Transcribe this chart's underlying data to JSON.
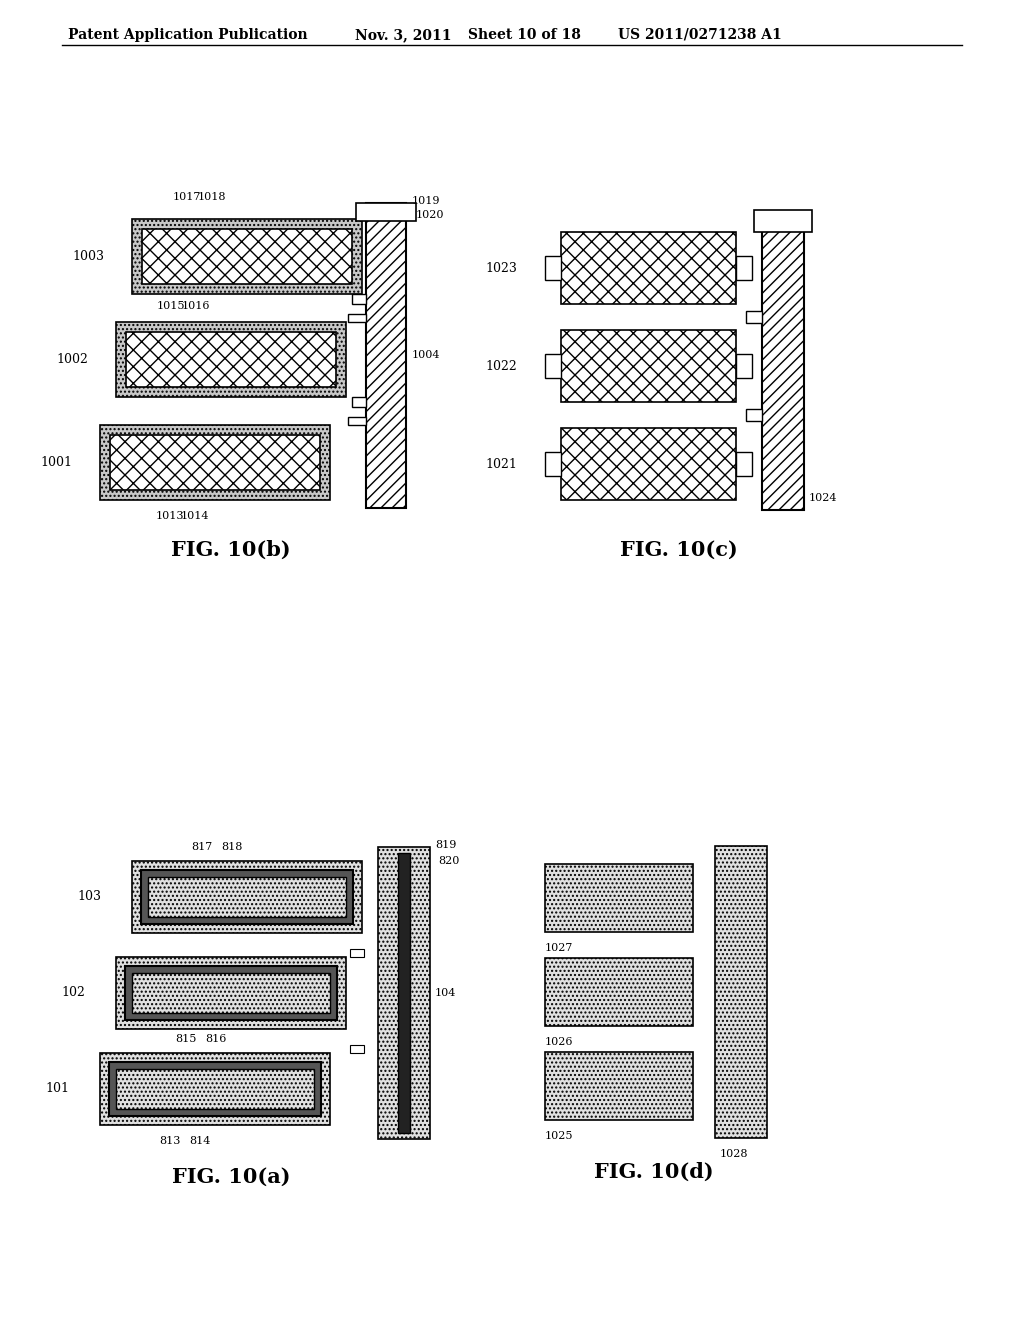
{
  "header_left": "Patent Application Publication",
  "header_mid": "Nov. 3, 2011",
  "header_right_sheet": "Sheet 10 of 18",
  "header_right_patent": "US 2011/0271238 A1",
  "bg_color": "#ffffff"
}
